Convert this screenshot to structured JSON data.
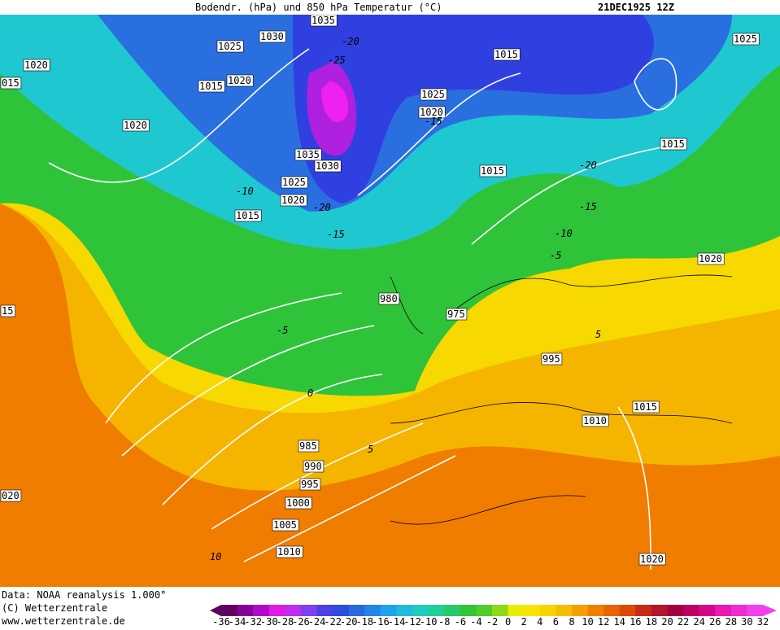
{
  "header": {
    "title": "Bodendr. (hPa) und 850 hPa Temperatur (°C)",
    "date": "21DEC1925 12Z"
  },
  "isobar_labels": [
    "1035",
    "1030",
    "1025",
    "1020",
    "015",
    "1015",
    "1020",
    "1020",
    "1035",
    "1030",
    "1025",
    "1020",
    "1015",
    "1015",
    "1025",
    "1020",
    "1015",
    "1015",
    "1025",
    "1020",
    "980",
    "975",
    "995",
    "1015",
    "1010",
    "985",
    "990",
    "995",
    "1000",
    "1005",
    "1010",
    "1020",
    "020",
    "15"
  ],
  "temperature_labels": [
    "-20",
    "-25",
    "-15",
    "-20",
    "-15",
    "-10",
    "-20",
    "-15",
    "-10",
    "-5",
    "-5",
    "0",
    "5",
    "5",
    "10"
  ],
  "footer": {
    "data": "Data: NOAA reanalysis 1.000°",
    "copyright": "(C) Wetterzentrale",
    "url": "www.wetterzentrale.de"
  },
  "color_scale": {
    "labels": [
      -36,
      -34,
      -32,
      -30,
      -28,
      -26,
      -24,
      -22,
      -20,
      -18,
      -16,
      -14,
      -12,
      -10,
      -8,
      -6,
      -4,
      -2,
      0,
      2,
      4,
      6,
      8,
      10,
      12,
      14,
      16,
      18,
      20,
      22,
      24,
      26,
      28,
      30,
      32
    ]
  }
}
